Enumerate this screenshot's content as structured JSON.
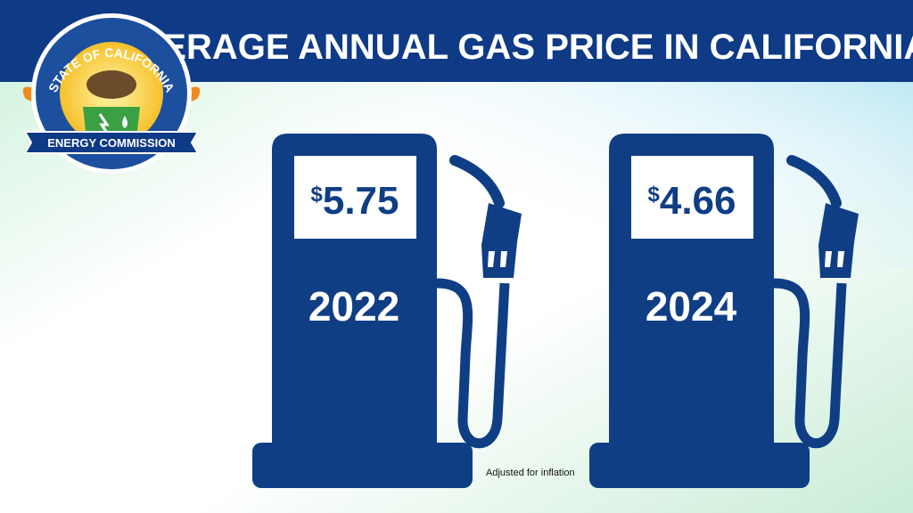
{
  "header": {
    "title": "AVERAGE ANNUAL GAS PRICE IN CALIFORNIA"
  },
  "logo": {
    "arc_text": "STATE OF CALIFORNIA",
    "banner_text": "ENERGY COMMISSION"
  },
  "pumps": [
    {
      "currency": "$",
      "price": "5.75",
      "year": "2022"
    },
    {
      "currency": "$",
      "price": "4.66",
      "year": "2024"
    }
  ],
  "note": "Adjusted for inflation"
}
